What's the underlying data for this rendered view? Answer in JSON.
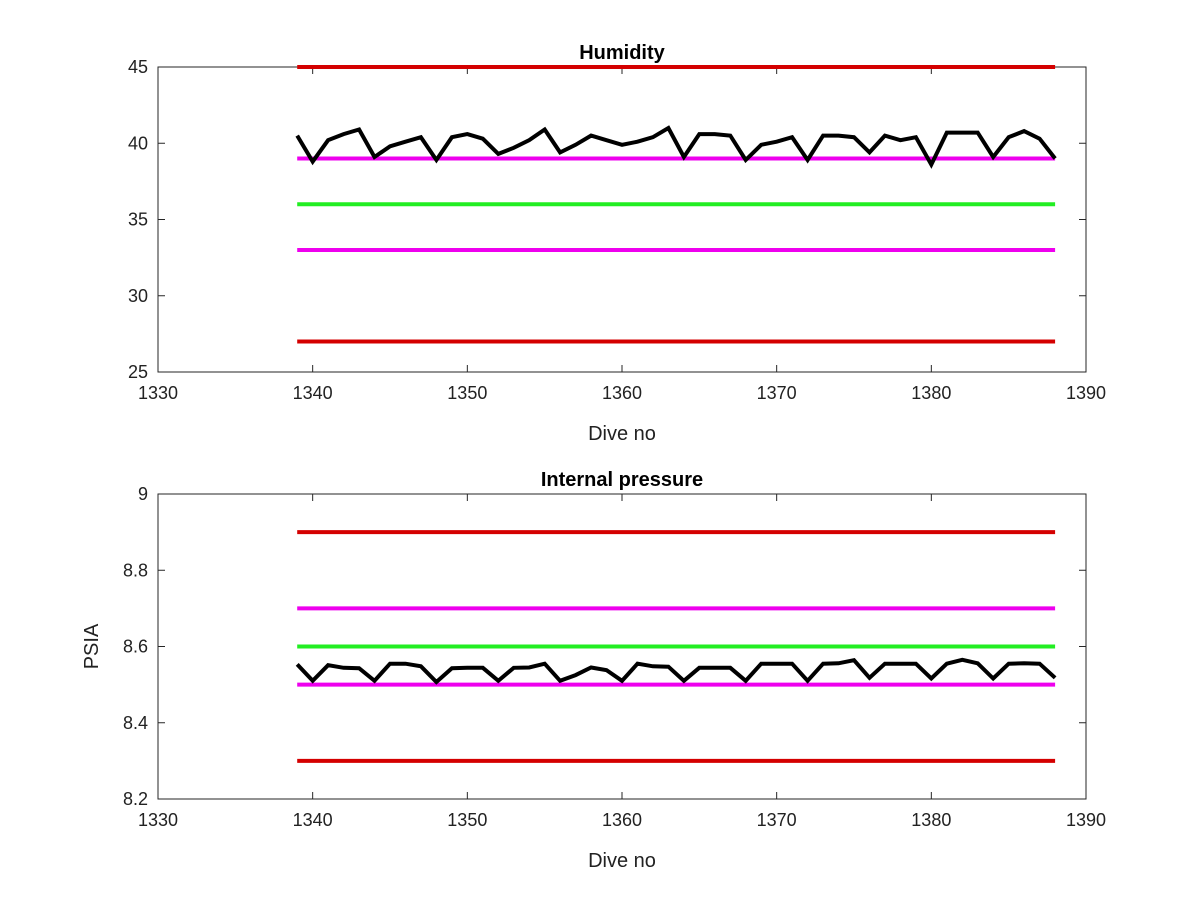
{
  "colors": {
    "limit_red": "#d40000",
    "limit_magenta": "#ee00ee",
    "target_green": "#22ee22",
    "data_black": "#000000"
  },
  "chart_data": [
    {
      "type": "line",
      "title": "Humidity",
      "xlabel": "Dive no",
      "ylabel": "",
      "xlim": [
        1330,
        1390
      ],
      "ylim": [
        25,
        45
      ],
      "xticks": [
        "1330",
        "1340",
        "1350",
        "1360",
        "1370",
        "1380",
        "1390"
      ],
      "yticks": [
        "25",
        "30",
        "35",
        "40",
        "45"
      ],
      "grid": false,
      "series": [
        {
          "color": "#d40000",
          "x": [
            1339,
            1388
          ],
          "values": [
            45,
            45
          ]
        },
        {
          "color": "#ee00ee",
          "x": [
            1339,
            1388
          ],
          "values": [
            39,
            39
          ]
        },
        {
          "color": "#22ee22",
          "x": [
            1339,
            1388
          ],
          "values": [
            36,
            36
          ]
        },
        {
          "color": "#ee00ee",
          "x": [
            1339,
            1388
          ],
          "values": [
            33,
            33
          ]
        },
        {
          "color": "#d40000",
          "x": [
            1339,
            1388
          ],
          "values": [
            27,
            27
          ]
        },
        {
          "color": "#000000",
          "x": [
            1339,
            1340,
            1341,
            1342,
            1343,
            1344,
            1345,
            1346,
            1347,
            1348,
            1349,
            1350,
            1351,
            1352,
            1353,
            1354,
            1355,
            1356,
            1357,
            1358,
            1359,
            1360,
            1361,
            1362,
            1363,
            1364,
            1365,
            1366,
            1367,
            1368,
            1369,
            1370,
            1371,
            1372,
            1373,
            1374,
            1375,
            1376,
            1377,
            1378,
            1379,
            1380,
            1381,
            1382,
            1383,
            1384,
            1385,
            1386,
            1387,
            1388
          ],
          "values": [
            40.5,
            38.8,
            40.2,
            40.6,
            40.9,
            39.1,
            39.8,
            40.1,
            40.4,
            38.9,
            40.4,
            40.6,
            40.3,
            39.3,
            39.7,
            40.2,
            40.9,
            39.4,
            39.9,
            40.5,
            40.2,
            39.9,
            40.1,
            40.4,
            41.0,
            39.1,
            40.6,
            40.6,
            40.5,
            38.9,
            39.9,
            40.1,
            40.4,
            38.9,
            40.5,
            40.5,
            40.4,
            39.4,
            40.5,
            40.2,
            40.4,
            38.6,
            40.7,
            40.7,
            40.7,
            39.1,
            40.4,
            40.8,
            40.3,
            39.0
          ]
        }
      ]
    },
    {
      "type": "line",
      "title": "Internal pressure",
      "xlabel": "Dive no",
      "ylabel": "PSIA",
      "xlim": [
        1330,
        1390
      ],
      "ylim": [
        8.2,
        9.0
      ],
      "xticks": [
        "1330",
        "1340",
        "1350",
        "1360",
        "1370",
        "1380",
        "1390"
      ],
      "yticks": [
        "8.2",
        "8.4",
        "8.6",
        "8.8",
        "9"
      ],
      "grid": false,
      "series": [
        {
          "color": "#d40000",
          "x": [
            1339,
            1388
          ],
          "values": [
            8.9,
            8.9
          ]
        },
        {
          "color": "#ee00ee",
          "x": [
            1339,
            1388
          ],
          "values": [
            8.7,
            8.7
          ]
        },
        {
          "color": "#22ee22",
          "x": [
            1339,
            1388
          ],
          "values": [
            8.6,
            8.6
          ]
        },
        {
          "color": "#ee00ee",
          "x": [
            1339,
            1388
          ],
          "values": [
            8.5,
            8.5
          ]
        },
        {
          "color": "#d40000",
          "x": [
            1339,
            1388
          ],
          "values": [
            8.3,
            8.3
          ]
        },
        {
          "color": "#000000",
          "x": [
            1339,
            1340,
            1341,
            1342,
            1343,
            1344,
            1345,
            1346,
            1347,
            1348,
            1349,
            1350,
            1351,
            1352,
            1353,
            1354,
            1355,
            1356,
            1357,
            1358,
            1359,
            1360,
            1361,
            1362,
            1363,
            1364,
            1365,
            1366,
            1367,
            1368,
            1369,
            1370,
            1371,
            1372,
            1373,
            1374,
            1375,
            1376,
            1377,
            1378,
            1379,
            1380,
            1381,
            1382,
            1383,
            1384,
            1385,
            1386,
            1387,
            1388
          ],
          "values": [
            8.553,
            8.51,
            8.551,
            8.544,
            8.543,
            8.51,
            8.555,
            8.555,
            8.548,
            8.507,
            8.543,
            8.544,
            8.544,
            8.51,
            8.544,
            8.545,
            8.555,
            8.51,
            8.525,
            8.545,
            8.538,
            8.51,
            8.555,
            8.548,
            8.547,
            8.51,
            8.544,
            8.544,
            8.544,
            8.51,
            8.555,
            8.555,
            8.555,
            8.51,
            8.555,
            8.556,
            8.564,
            8.518,
            8.555,
            8.555,
            8.555,
            8.516,
            8.555,
            8.565,
            8.556,
            8.516,
            8.555,
            8.556,
            8.555,
            8.518
          ]
        }
      ]
    }
  ]
}
